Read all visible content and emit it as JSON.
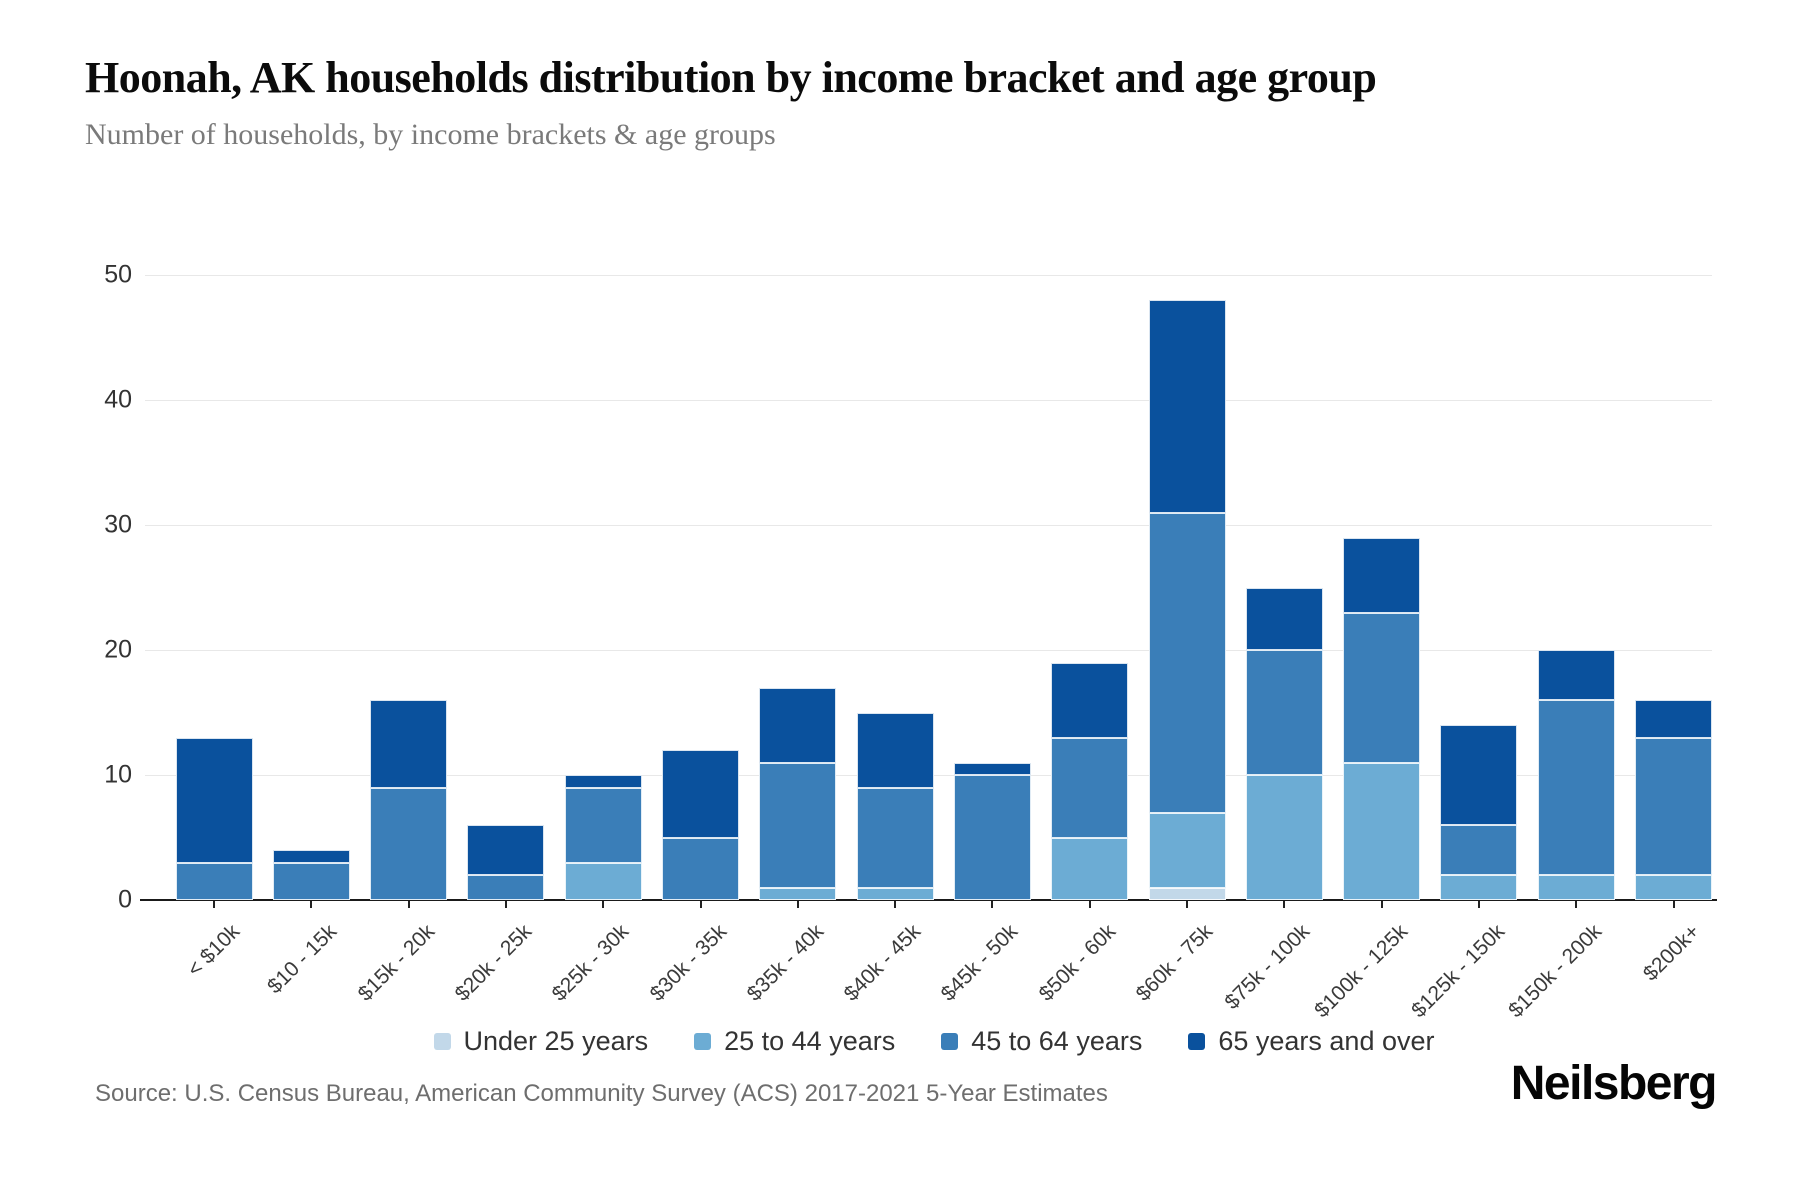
{
  "header": {
    "title": "Hoonah, AK households distribution by income bracket and age group",
    "subtitle": "Number of households, by income brackets & age groups"
  },
  "footer": {
    "source": "Source: U.S. Census Bureau, American Community Survey (ACS) 2017-2021 5-Year Estimates",
    "brand": "Neilsberg"
  },
  "chart_data": {
    "type": "bar",
    "stacked": true,
    "title": "Hoonah, AK households distribution by income bracket and age group",
    "subtitle": "Number of households, by income brackets & age groups",
    "xlabel": "",
    "ylabel": "",
    "ylim": [
      0,
      50
    ],
    "yticks": [
      0,
      10,
      20,
      30,
      40,
      50
    ],
    "grid": true,
    "legend_position": "bottom",
    "categories": [
      "< $10k",
      "$10 - 15k",
      "$15k - 20k",
      "$20k - 25k",
      "$25k - 30k",
      "$30k - 35k",
      "$35k - 40k",
      "$40k - 45k",
      "$45k - 50k",
      "$50k - 60k",
      "$60k - 75k",
      "$75k - 100k",
      "$100k - 125k",
      "$125k - 150k",
      "$150k - 200k",
      "$200k+"
    ],
    "series": [
      {
        "name": "Under 25 years",
        "color": "#c2d8e9",
        "values": [
          0,
          0,
          0,
          0,
          0,
          0,
          0,
          0,
          0,
          0,
          1,
          0,
          0,
          0,
          0,
          0
        ]
      },
      {
        "name": "25 to 44 years",
        "color": "#6cacd4",
        "values": [
          0,
          0,
          0,
          0,
          3,
          0,
          1,
          1,
          0,
          5,
          6,
          10,
          11,
          2,
          2,
          2
        ]
      },
      {
        "name": "45 to 64 years",
        "color": "#3a7eb8",
        "values": [
          3,
          3,
          9,
          2,
          6,
          5,
          10,
          8,
          10,
          8,
          24,
          10,
          12,
          4,
          14,
          11
        ]
      },
      {
        "name": "65 years and over",
        "color": "#0a519d",
        "values": [
          10,
          1,
          7,
          4,
          1,
          7,
          6,
          6,
          1,
          6,
          17,
          5,
          6,
          8,
          4,
          3
        ]
      }
    ],
    "totals": [
      13,
      4,
      16,
      6,
      10,
      12,
      17,
      15,
      11,
      19,
      48,
      25,
      29,
      14,
      20,
      16
    ]
  }
}
